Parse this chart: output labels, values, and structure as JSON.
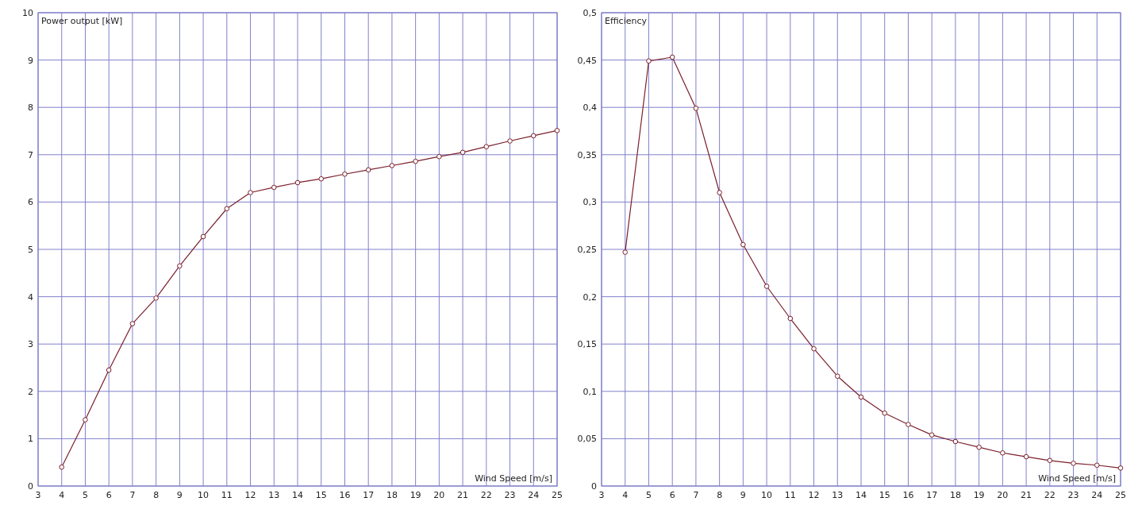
{
  "chart_data": [
    {
      "type": "line",
      "ylabel": "Power output [kW]",
      "xlabel": "Wind Speed [m/s]",
      "x": [
        4,
        5,
        6,
        7,
        8,
        9,
        10,
        11,
        12,
        13,
        14,
        15,
        16,
        17,
        18,
        19,
        20,
        21,
        22,
        23,
        24,
        25
      ],
      "series": [
        {
          "color": "#7a1f2b",
          "values": [
            0.4,
            1.4,
            2.45,
            3.43,
            3.97,
            4.65,
            5.27,
            5.86,
            6.2,
            6.31,
            6.41,
            6.49,
            6.59,
            6.68,
            6.77,
            6.86,
            6.96,
            7.05,
            7.17,
            7.29,
            7.4,
            7.51
          ]
        }
      ],
      "xlim": [
        3,
        25
      ],
      "xticks": [
        3,
        4,
        5,
        6,
        7,
        8,
        9,
        10,
        11,
        12,
        13,
        14,
        15,
        16,
        17,
        18,
        19,
        20,
        21,
        22,
        23,
        24,
        25
      ],
      "ylim": [
        0,
        10
      ],
      "yticks": [
        0,
        1,
        2,
        3,
        4,
        5,
        6,
        7,
        8,
        9,
        10
      ],
      "grid": true,
      "marker": "circle",
      "line_style": "solid"
    },
    {
      "type": "line",
      "ylabel": "Efficiency",
      "xlabel": "Wind Speed [m/s]",
      "x": [
        4,
        5,
        6,
        7,
        8,
        9,
        10,
        11,
        12,
        13,
        14,
        15,
        16,
        17,
        18,
        19,
        20,
        21,
        22,
        23,
        24,
        25
      ],
      "series": [
        {
          "color": "#7a1f2b",
          "values": [
            0.247,
            0.449,
            0.453,
            0.399,
            0.31,
            0.255,
            0.211,
            0.177,
            0.145,
            0.116,
            0.094,
            0.077,
            0.065,
            0.054,
            0.047,
            0.041,
            0.035,
            0.031,
            0.027,
            0.024,
            0.022,
            0.019
          ]
        }
      ],
      "xlim": [
        3,
        25
      ],
      "xticks": [
        3,
        4,
        5,
        6,
        7,
        8,
        9,
        10,
        11,
        12,
        13,
        14,
        15,
        16,
        17,
        18,
        19,
        20,
        21,
        22,
        23,
        24,
        25
      ],
      "ylim": [
        0,
        0.5
      ],
      "yticks": [
        0,
        {
          "value": 0.05,
          "label": "0,05"
        },
        {
          "value": 0.1,
          "label": "0,1"
        },
        {
          "value": 0.15,
          "label": "0,15"
        },
        {
          "value": 0.2,
          "label": "0,2"
        },
        {
          "value": 0.25,
          "label": "0,25"
        },
        {
          "value": 0.3,
          "label": "0,3"
        },
        {
          "value": 0.35,
          "label": "0,35"
        },
        {
          "value": 0.4,
          "label": "0,4"
        },
        {
          "value": 0.45,
          "label": "0,45"
        },
        {
          "value": 0.5,
          "label": "0,5"
        }
      ],
      "grid": true,
      "marker": "circle",
      "line_style": "solid"
    }
  ]
}
